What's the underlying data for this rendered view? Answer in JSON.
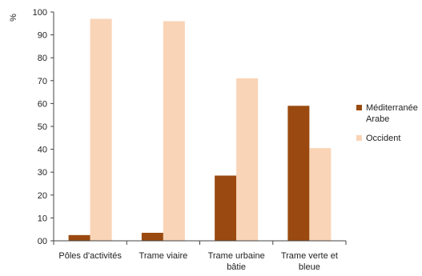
{
  "chart_data": {
    "type": "bar",
    "ylabel": "%",
    "ylim": [
      0,
      100
    ],
    "yticks": [
      "00",
      "10",
      "20",
      "30",
      "40",
      "50",
      "60",
      "70",
      "80",
      "90",
      "100"
    ],
    "categories": [
      [
        "Pôles d'activités"
      ],
      [
        "Trame viaire"
      ],
      [
        "Trame urbaine",
        "bâtie"
      ],
      [
        "Trame verte et",
        "bleue"
      ]
    ],
    "series": [
      {
        "name": [
          "Méditerranée",
          "Arabe"
        ],
        "color": "#9a4a10",
        "values": [
          2.5,
          3.5,
          28.5,
          59
        ]
      },
      {
        "name": [
          "Occident"
        ],
        "color": "#f9d4b6",
        "values": [
          97,
          96,
          71,
          40.5
        ]
      }
    ],
    "legend_position": "right",
    "grid": false
  }
}
